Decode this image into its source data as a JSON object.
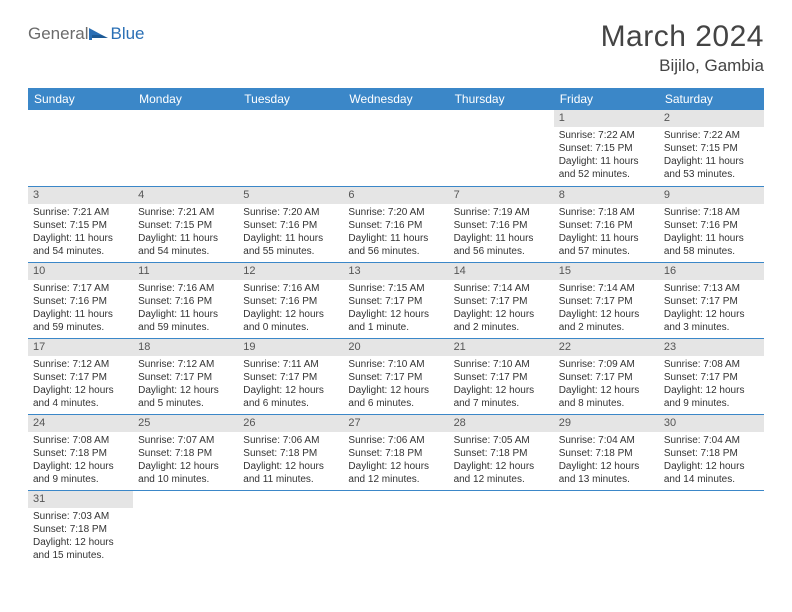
{
  "logo": {
    "text1": "General",
    "text2": "Blue"
  },
  "title": "March 2024",
  "location": "Bijilo, Gambia",
  "colors": {
    "header_bg": "#3b87c8",
    "header_text": "#ffffff",
    "daynum_bg": "#e5e5e5",
    "daynum_text": "#555555",
    "body_text": "#333333",
    "row_border": "#3b87c8",
    "logo_gray": "#6b6b6b",
    "logo_blue": "#2a6fb5"
  },
  "weekdays": [
    "Sunday",
    "Monday",
    "Tuesday",
    "Wednesday",
    "Thursday",
    "Friday",
    "Saturday"
  ],
  "first_weekday_index": 5,
  "days": [
    {
      "n": 1,
      "sunrise": "7:22 AM",
      "sunset": "7:15 PM",
      "daylight": "11 hours and 52 minutes."
    },
    {
      "n": 2,
      "sunrise": "7:22 AM",
      "sunset": "7:15 PM",
      "daylight": "11 hours and 53 minutes."
    },
    {
      "n": 3,
      "sunrise": "7:21 AM",
      "sunset": "7:15 PM",
      "daylight": "11 hours and 54 minutes."
    },
    {
      "n": 4,
      "sunrise": "7:21 AM",
      "sunset": "7:15 PM",
      "daylight": "11 hours and 54 minutes."
    },
    {
      "n": 5,
      "sunrise": "7:20 AM",
      "sunset": "7:16 PM",
      "daylight": "11 hours and 55 minutes."
    },
    {
      "n": 6,
      "sunrise": "7:20 AM",
      "sunset": "7:16 PM",
      "daylight": "11 hours and 56 minutes."
    },
    {
      "n": 7,
      "sunrise": "7:19 AM",
      "sunset": "7:16 PM",
      "daylight": "11 hours and 56 minutes."
    },
    {
      "n": 8,
      "sunrise": "7:18 AM",
      "sunset": "7:16 PM",
      "daylight": "11 hours and 57 minutes."
    },
    {
      "n": 9,
      "sunrise": "7:18 AM",
      "sunset": "7:16 PM",
      "daylight": "11 hours and 58 minutes."
    },
    {
      "n": 10,
      "sunrise": "7:17 AM",
      "sunset": "7:16 PM",
      "daylight": "11 hours and 59 minutes."
    },
    {
      "n": 11,
      "sunrise": "7:16 AM",
      "sunset": "7:16 PM",
      "daylight": "11 hours and 59 minutes."
    },
    {
      "n": 12,
      "sunrise": "7:16 AM",
      "sunset": "7:16 PM",
      "daylight": "12 hours and 0 minutes."
    },
    {
      "n": 13,
      "sunrise": "7:15 AM",
      "sunset": "7:17 PM",
      "daylight": "12 hours and 1 minute."
    },
    {
      "n": 14,
      "sunrise": "7:14 AM",
      "sunset": "7:17 PM",
      "daylight": "12 hours and 2 minutes."
    },
    {
      "n": 15,
      "sunrise": "7:14 AM",
      "sunset": "7:17 PM",
      "daylight": "12 hours and 2 minutes."
    },
    {
      "n": 16,
      "sunrise": "7:13 AM",
      "sunset": "7:17 PM",
      "daylight": "12 hours and 3 minutes."
    },
    {
      "n": 17,
      "sunrise": "7:12 AM",
      "sunset": "7:17 PM",
      "daylight": "12 hours and 4 minutes."
    },
    {
      "n": 18,
      "sunrise": "7:12 AM",
      "sunset": "7:17 PM",
      "daylight": "12 hours and 5 minutes."
    },
    {
      "n": 19,
      "sunrise": "7:11 AM",
      "sunset": "7:17 PM",
      "daylight": "12 hours and 6 minutes."
    },
    {
      "n": 20,
      "sunrise": "7:10 AM",
      "sunset": "7:17 PM",
      "daylight": "12 hours and 6 minutes."
    },
    {
      "n": 21,
      "sunrise": "7:10 AM",
      "sunset": "7:17 PM",
      "daylight": "12 hours and 7 minutes."
    },
    {
      "n": 22,
      "sunrise": "7:09 AM",
      "sunset": "7:17 PM",
      "daylight": "12 hours and 8 minutes."
    },
    {
      "n": 23,
      "sunrise": "7:08 AM",
      "sunset": "7:17 PM",
      "daylight": "12 hours and 9 minutes."
    },
    {
      "n": 24,
      "sunrise": "7:08 AM",
      "sunset": "7:18 PM",
      "daylight": "12 hours and 9 minutes."
    },
    {
      "n": 25,
      "sunrise": "7:07 AM",
      "sunset": "7:18 PM",
      "daylight": "12 hours and 10 minutes."
    },
    {
      "n": 26,
      "sunrise": "7:06 AM",
      "sunset": "7:18 PM",
      "daylight": "12 hours and 11 minutes."
    },
    {
      "n": 27,
      "sunrise": "7:06 AM",
      "sunset": "7:18 PM",
      "daylight": "12 hours and 12 minutes."
    },
    {
      "n": 28,
      "sunrise": "7:05 AM",
      "sunset": "7:18 PM",
      "daylight": "12 hours and 12 minutes."
    },
    {
      "n": 29,
      "sunrise": "7:04 AM",
      "sunset": "7:18 PM",
      "daylight": "12 hours and 13 minutes."
    },
    {
      "n": 30,
      "sunrise": "7:04 AM",
      "sunset": "7:18 PM",
      "daylight": "12 hours and 14 minutes."
    },
    {
      "n": 31,
      "sunrise": "7:03 AM",
      "sunset": "7:18 PM",
      "daylight": "12 hours and 15 minutes."
    }
  ],
  "labels": {
    "sunrise": "Sunrise:",
    "sunset": "Sunset:",
    "daylight": "Daylight:"
  }
}
